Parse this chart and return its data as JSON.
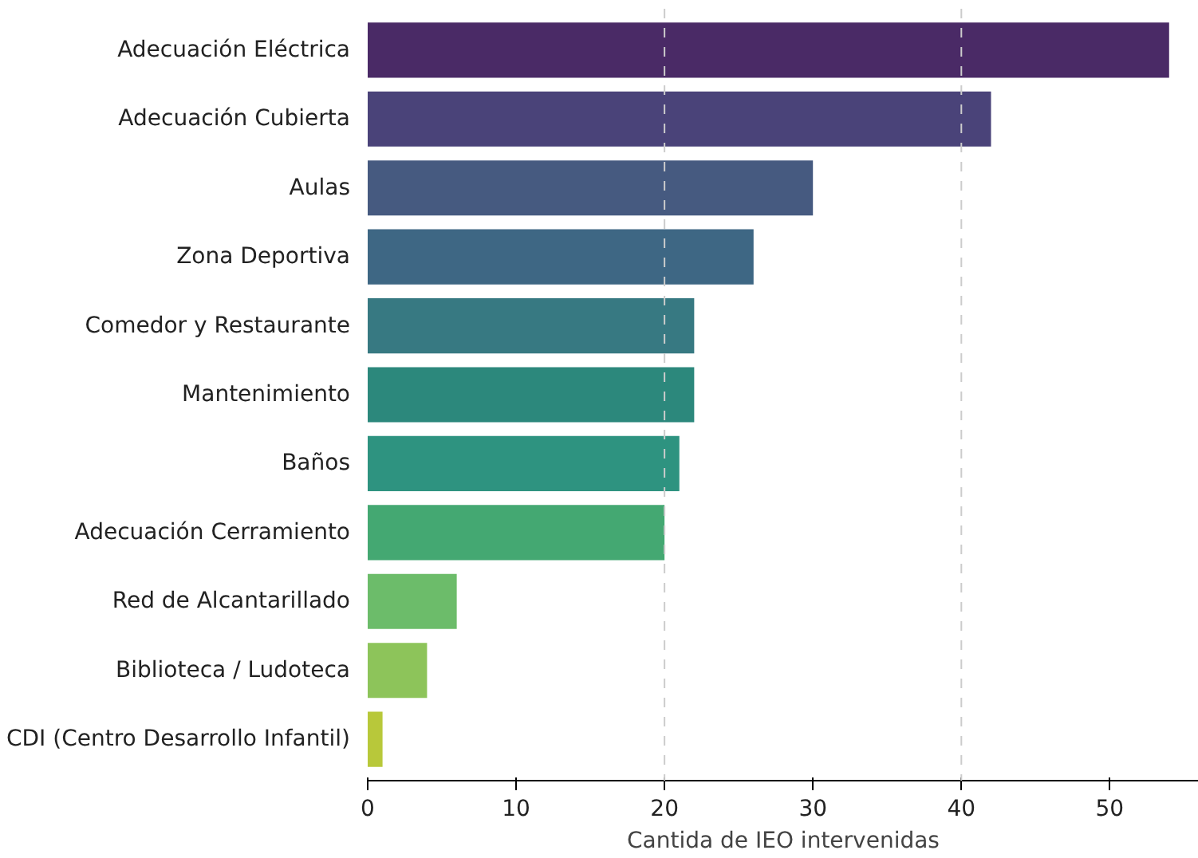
{
  "chart_data": {
    "type": "bar",
    "orientation": "horizontal",
    "xlabel": "Cantida de IEO intervenidas",
    "categories": [
      "Adecuación Eléctrica",
      "Adecuación Cubierta",
      "Aulas",
      "Zona Deportiva",
      "Comedor y Restaurante",
      "Mantenimiento",
      "Baños",
      "Adecuación Cerramiento",
      "Red de Alcantarillado",
      "Biblioteca / Ludoteca",
      "CDI (Centro Desarrollo Infantil)"
    ],
    "values": [
      54,
      42,
      30,
      26,
      22,
      22,
      21,
      20,
      6,
      4,
      1
    ],
    "colors": [
      "#4a2a66",
      "#4a4379",
      "#465a80",
      "#3e6784",
      "#377982",
      "#2c887c",
      "#2e9380",
      "#44a872",
      "#6cbc6a",
      "#8dc45a",
      "#b8c83a"
    ],
    "xlim": [
      0,
      56
    ],
    "xticks": [
      0,
      10,
      20,
      30,
      40,
      50
    ],
    "grid": false,
    "ref_lines": [
      {
        "axis": "x",
        "value": 20,
        "color": "#cccccc",
        "line_style": "dashed"
      },
      {
        "axis": "x",
        "value": 40,
        "color": "#cccccc",
        "line_style": "dashed"
      }
    ]
  }
}
